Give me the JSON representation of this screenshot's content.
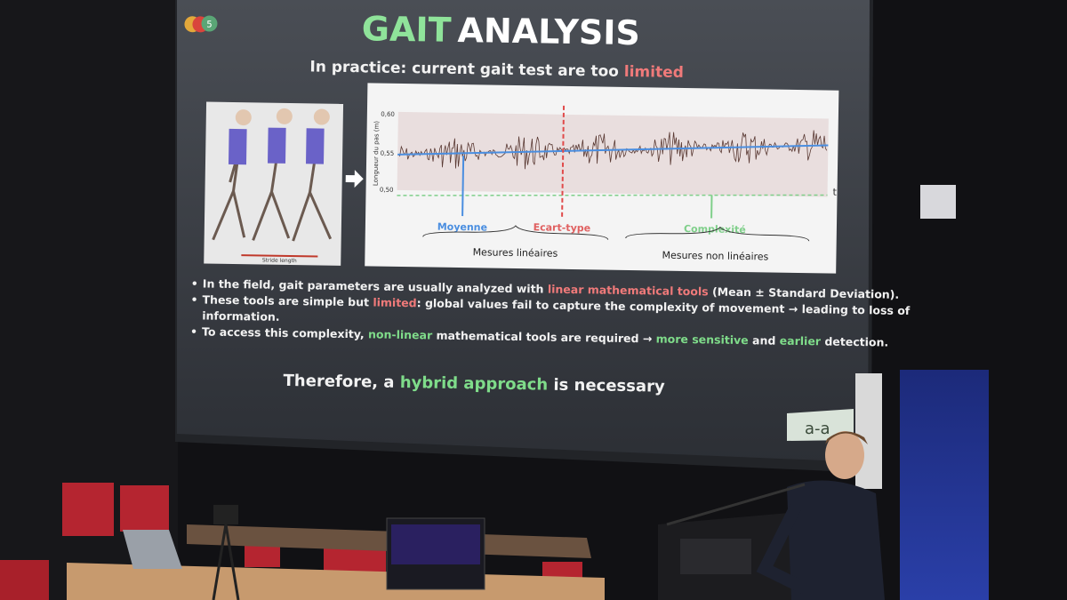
{
  "slide": {
    "logo_badge": "5",
    "title": [
      "GAIT",
      "ANALYSIS"
    ],
    "subtitle": [
      "In practice: current gait test are too ",
      "limited"
    ],
    "illustration_caption": "Stride length",
    "chart": {
      "y_axis_label": "Longueur du pas (m)",
      "yticks": [
        "0,60",
        "0,55",
        "0,50"
      ],
      "x_axis_label": "t",
      "mean_label": "Moyenne",
      "std_label": "Ecart-type",
      "complexity_label": "Complexité",
      "linear_group": "Mesures linéaires",
      "nonlinear_group": "Mesures non linéaires"
    },
    "lines": [
      [
        "In the field, gait parameters are usually analyzed with ",
        "linear mathematical tools",
        " (Mean ± Standard Deviation)."
      ],
      [
        "These tools are simple but ",
        "limited",
        ": global values fail to capture the complexity of movement → leading to loss of"
      ],
      [
        "information."
      ],
      [
        "To access this complexity, ",
        "non-linear",
        " mathematical tools are required → ",
        "more sensitive",
        " and ",
        "earlier",
        " detection."
      ]
    ],
    "conclusion": [
      "Therefore, a ",
      "hybrid approach",
      " is necessary"
    ],
    "footer_logo": "a-a"
  }
}
